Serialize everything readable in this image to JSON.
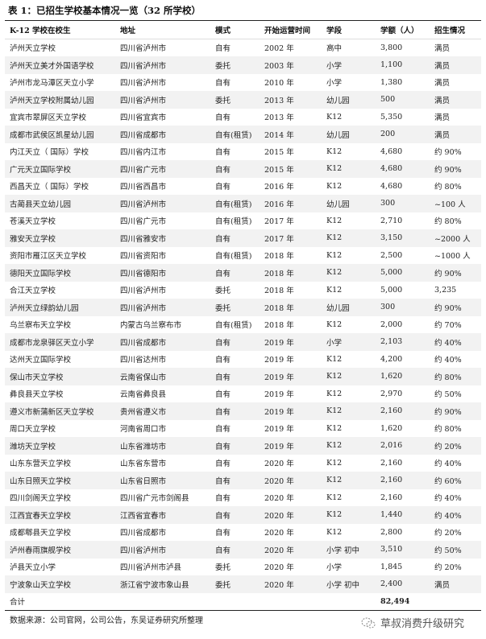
{
  "title": "表 1：已招生学校基本情况一览（32 所学校）",
  "columns": [
    "K-12 学校在校生",
    "地址",
    "模式",
    "开始运营时间",
    "学段",
    "学额（人）",
    "招生情况"
  ],
  "rows": [
    [
      "泸州天立学校",
      "四川省泸州市",
      "自有",
      "2002 年",
      "高中",
      "3,800",
      "满员"
    ],
    [
      "泸州天立美才外国语学校",
      "四川省泸州市",
      "委托",
      "2003 年",
      "小学",
      "1,100",
      "满员"
    ],
    [
      "泸州市龙马潭区天立小学",
      "四川省泸州市",
      "自有",
      "2010 年",
      "小学",
      "1,380",
      "满员"
    ],
    [
      "泸州天立学校附属幼儿园",
      "四川省泸州市",
      "委托",
      "2013 年",
      "幼儿园",
      "500",
      "满员"
    ],
    [
      "宜宾市翠屏区天立学校",
      "四川省宜宾市",
      "自有",
      "2013 年",
      "K12",
      "5,350",
      "满员"
    ],
    [
      "成都市武侯区凯星幼儿园",
      "四川省成都市",
      "自有(租赁)",
      "2014 年",
      "幼儿园",
      "200",
      "满员"
    ],
    [
      "内江天立（ 国际）学校",
      "四川省内江市",
      "自有",
      "2015 年",
      "K12",
      "4,680",
      "约 90%"
    ],
    [
      "广元天立国际学校",
      "四川省广元市",
      "自有",
      "2015 年",
      "K12",
      "4,680",
      "约 90%"
    ],
    [
      "西昌天立（ 国际）学校",
      "四川省西昌市",
      "自有",
      "2016 年",
      "K12",
      "4,680",
      "约 80%"
    ],
    [
      "古蔺县天立幼儿园",
      "四川省泸州市",
      "自有(租赁)",
      "2016 年",
      "幼儿园",
      "300",
      "~100 人"
    ],
    [
      "苍溪天立学校",
      "四川省广元市",
      "自有(租赁)",
      "2017 年",
      "K12",
      "2,710",
      "约 80%"
    ],
    [
      "雅安天立学校",
      "四川省雅安市",
      "自有",
      "2017 年",
      "K12",
      "3,150",
      "~2000 人"
    ],
    [
      "资阳市雁江区天立学校",
      "四川省资阳市",
      "自有(租赁)",
      "2018 年",
      "K12",
      "2,500",
      "~1000 人"
    ],
    [
      "德阳天立国际学校",
      "四川省德阳市",
      "自有",
      "2018 年",
      "K12",
      "5,000",
      "约 90%"
    ],
    [
      "合江天立学校",
      "四川省泸州市",
      "委托",
      "2018 年",
      "K12",
      "5,000",
      "3,235"
    ],
    [
      "泸州天立绿韵幼儿园",
      "四川省泸州市",
      "委托",
      "2018 年",
      "幼儿园",
      "300",
      "约 90%"
    ],
    [
      "乌兰察布天立学校",
      "内蒙古乌兰察布市",
      "自有(租赁)",
      "2018 年",
      "K12",
      "2,000",
      "约 70%"
    ],
    [
      "成都市龙泉驿区天立小学",
      "四川省成都市",
      "自有",
      "2019 年",
      "小学",
      "2,103",
      "约 40%"
    ],
    [
      "达州天立国际学校",
      "四川省达州市",
      "自有",
      "2019 年",
      "K12",
      "4,200",
      "约 40%"
    ],
    [
      "保山市天立学校",
      "云南省保山市",
      "自有",
      "2019 年",
      "K12",
      "1,620",
      "约 80%"
    ],
    [
      "彝良县天立学校",
      "云南省彝良县",
      "自有",
      "2019 年",
      "K12",
      "2,970",
      "约 50%"
    ],
    [
      "遵义市新蒲新区天立学校",
      "贵州省遵义市",
      "自有",
      "2019 年",
      "K12",
      "2,160",
      "约 90%"
    ],
    [
      "周口天立学校",
      "河南省周口市",
      "自有",
      "2019 年",
      "K12",
      "1,620",
      "约 80%"
    ],
    [
      "潍坊天立学校",
      "山东省潍坊市",
      "自有",
      "2019 年",
      "K12",
      "2,016",
      "约 20%"
    ],
    [
      "山东东营天立学校",
      "山东省东营市",
      "自有",
      "2020 年",
      "K12",
      "2,160",
      "约 40%"
    ],
    [
      "山东日照天立学校",
      "山东省日照市",
      "自有",
      "2020 年",
      "K12",
      "2,160",
      "约 60%"
    ],
    [
      "四川剑阁天立学校",
      "四川省广元市剑阁县",
      "自有",
      "2020 年",
      "K12",
      "2,160",
      "约 40%"
    ],
    [
      "江西宜春天立学校",
      "江西省宜春市",
      "自有",
      "2020 年",
      "K12",
      "1,440",
      "约 40%"
    ],
    [
      "成都郫县天立学校",
      "四川省成都市",
      "自有",
      "2020 年",
      "K12",
      "2,800",
      "约 20%"
    ],
    [
      "泸州春雨旗舰学校",
      "四川省泸州市",
      "自有",
      "2020 年",
      "小学 初中",
      "3,510",
      "约 50%"
    ],
    [
      "泸县天立小学",
      "四川省泸州市泸县",
      "委托",
      "2020 年",
      "小学",
      "1,845",
      "约 20%"
    ],
    [
      "宁波象山天立学校",
      "浙江省宁波市象山县",
      "委托",
      "2020 年",
      "小学 初中",
      "2,400",
      "满员"
    ]
  ],
  "total": {
    "label": "合计",
    "amount": "82,494"
  },
  "source": "数据来源：公司官网，公司公告，东吴证券研究所整理",
  "watermark": {
    "text": "草叔消费升级研究",
    "icon": "wechat-icon"
  }
}
